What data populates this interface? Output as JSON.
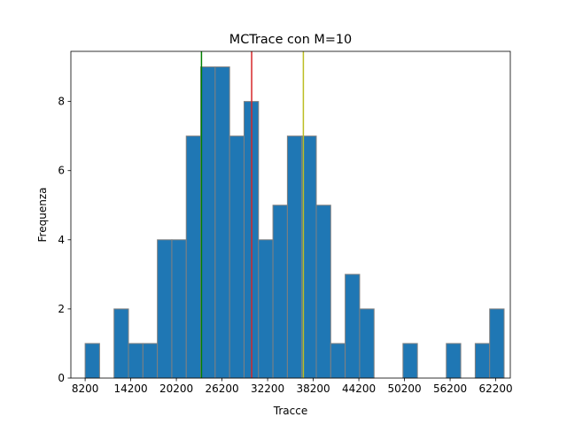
{
  "chart_data": {
    "type": "bar",
    "title": "MCTrace con M=10",
    "xlabel": "Tracce",
    "ylabel": "Frequenza",
    "xlim": [
      6324,
      64116
    ],
    "ylim": [
      0,
      9.45
    ],
    "bin_start": 8200,
    "bin_width": 1900,
    "counts": [
      1,
      0,
      2,
      1,
      1,
      4,
      4,
      7,
      9,
      9,
      7,
      8,
      4,
      5,
      7,
      7,
      5,
      1,
      3,
      2,
      0,
      0,
      1,
      0,
      0,
      1,
      0,
      1,
      2
    ],
    "x_ticks": [
      "8200",
      "14200",
      "20200",
      "26200",
      "32200",
      "38200",
      "44200",
      "50200",
      "56200",
      "62200"
    ],
    "y_ticks": [
      "0",
      "2",
      "4",
      "6",
      "8"
    ],
    "bar_color": "#1f77b4",
    "bar_edge_color": "#808080",
    "vlines": [
      {
        "x": 23500,
        "color": "#008000"
      },
      {
        "x": 30100,
        "color": "#d62728"
      },
      {
        "x": 36900,
        "color": "#bcbd22"
      }
    ],
    "grid": false,
    "legend": "none"
  }
}
